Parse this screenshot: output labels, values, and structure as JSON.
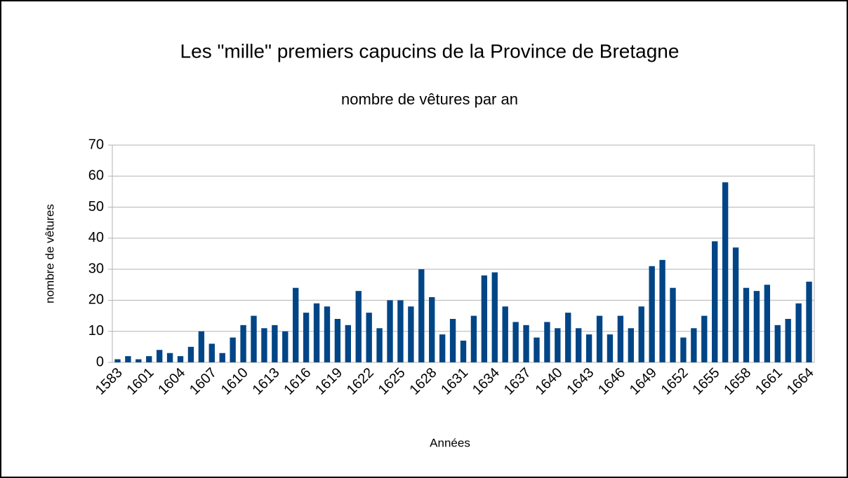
{
  "chart_data": {
    "type": "bar",
    "title": "Les \"mille\" premiers capucins de la Province de Bretagne",
    "subtitle": "nombre de vêtures par an",
    "x_label": "Années",
    "y_label": "nombre de vêtures",
    "categories": [
      "1583",
      null,
      null,
      "1601",
      null,
      null,
      "1604",
      null,
      null,
      "1607",
      null,
      null,
      "1610",
      null,
      null,
      "1613",
      null,
      null,
      "1616",
      null,
      null,
      "1619",
      null,
      null,
      "1622",
      null,
      null,
      "1625",
      null,
      null,
      "1628",
      null,
      null,
      "1631",
      null,
      null,
      "1634",
      null,
      null,
      "1637",
      null,
      null,
      "1640",
      null,
      null,
      "1643",
      null,
      null,
      "1646",
      null,
      null,
      "1649",
      null,
      null,
      "1652",
      null,
      null,
      "1655",
      null,
      null,
      "1658",
      null,
      null,
      "1661",
      null,
      null,
      "1664"
    ],
    "values": [
      1,
      2,
      1,
      2,
      4,
      3,
      2,
      5,
      10,
      6,
      3,
      8,
      12,
      15,
      11,
      12,
      10,
      24,
      16,
      19,
      18,
      14,
      12,
      23,
      16,
      11,
      20,
      20,
      18,
      30,
      21,
      9,
      14,
      7,
      15,
      28,
      29,
      18,
      13,
      12,
      8,
      13,
      11,
      16,
      11,
      9,
      15,
      9,
      15,
      11,
      18,
      31,
      33,
      24,
      8,
      11,
      15,
      39,
      58,
      37,
      24,
      23,
      25,
      12,
      14,
      19,
      26
    ],
    "color": "#004586",
    "ylim": [
      0,
      70
    ],
    "yticks": [
      0,
      10,
      20,
      30,
      40,
      50,
      60,
      70
    ],
    "grid": true
  }
}
